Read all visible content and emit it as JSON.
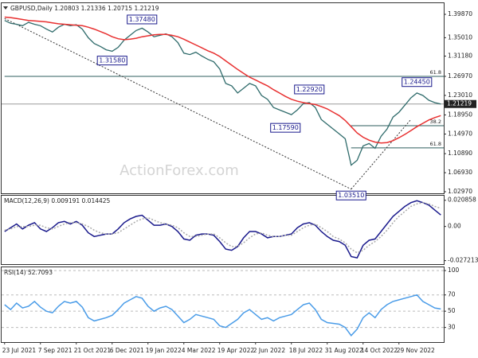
{
  "chart_data": [
    {
      "type": "line",
      "title": "GBPUSD,Daily  1.20803 1.21336 1.20715 1.21219",
      "watermark": "ActionForex.com",
      "categories": [
        "23 Jul 2021",
        null,
        null,
        null,
        null,
        null,
        "7 Sep 2021",
        null,
        null,
        null,
        null,
        null,
        "21 Oct 2021",
        null,
        null,
        null,
        null,
        null,
        "6 Dec 2021",
        null,
        null,
        null,
        null,
        null,
        "19 Jan 2022",
        null,
        null,
        null,
        null,
        null,
        "4 Mar 2022",
        null,
        null,
        null,
        null,
        null,
        "19 Apr 2022",
        null,
        null,
        null,
        null,
        null,
        "2 Jun 2022",
        null,
        null,
        null,
        null,
        null,
        "18 Jul 2022",
        null,
        null,
        null,
        null,
        null,
        "31 Aug 2022",
        null,
        null,
        null,
        null,
        null,
        "14 Oct 2022",
        null,
        null,
        null,
        null,
        null,
        "29 Nov 2022",
        null,
        null,
        null,
        null,
        null,
        null,
        null
      ],
      "series": [
        {
          "color": "#2f6b6b",
          "values": [
            1.386,
            1.38,
            1.378,
            1.375,
            1.382,
            1.378,
            1.375,
            1.368,
            1.362,
            1.372,
            1.378,
            1.375,
            1.377,
            1.368,
            1.35,
            1.338,
            1.332,
            1.325,
            1.322,
            1.33,
            1.345,
            1.355,
            1.365,
            1.37,
            1.362,
            1.352,
            1.355,
            1.358,
            1.352,
            1.34,
            1.318,
            1.315,
            1.32,
            1.312,
            1.305,
            1.3,
            1.285,
            1.255,
            1.25,
            1.235,
            1.245,
            1.255,
            1.25,
            1.23,
            1.222,
            1.205,
            1.2,
            1.195,
            1.19,
            1.2,
            1.213,
            1.215,
            1.205,
            1.18,
            1.17,
            1.16,
            1.15,
            1.14,
            1.085,
            1.095,
            1.125,
            1.13,
            1.12,
            1.145,
            1.16,
            1.185,
            1.195,
            1.21,
            1.225,
            1.235,
            1.23,
            1.22,
            1.215,
            1.21219
          ]
        },
        {
          "color": "#e83030",
          "values": [
            1.393,
            1.392,
            1.39,
            1.388,
            1.386,
            1.385,
            1.384,
            1.383,
            1.381,
            1.379,
            1.378,
            1.377,
            1.376,
            1.375,
            1.372,
            1.368,
            1.363,
            1.358,
            1.352,
            1.348,
            1.346,
            1.347,
            1.349,
            1.352,
            1.354,
            1.356,
            1.357,
            1.357,
            1.355,
            1.352,
            1.347,
            1.341,
            1.335,
            1.329,
            1.323,
            1.318,
            1.311,
            1.302,
            1.293,
            1.284,
            1.276,
            1.268,
            1.262,
            1.256,
            1.25,
            1.242,
            1.235,
            1.228,
            1.222,
            1.218,
            1.215,
            1.213,
            1.211,
            1.207,
            1.202,
            1.195,
            1.188,
            1.178,
            1.165,
            1.152,
            1.143,
            1.137,
            1.133,
            1.131,
            1.132,
            1.136,
            1.142,
            1.149,
            1.157,
            1.165,
            1.172,
            1.179,
            1.184,
            1.188
          ]
        }
      ],
      "last_label": "1.21219",
      "ylim": [
        1.0264,
        1.4219
      ],
      "yticks": [
        {
          "value": 1.3987,
          "label": "1.39870"
        },
        {
          "value": 1.3501,
          "label": "1.35010"
        },
        {
          "value": 1.3118,
          "label": "1.31180"
        },
        {
          "value": 1.2697,
          "label": "1.26970"
        },
        {
          "value": 1.2301,
          "label": "1.23010"
        },
        {
          "value": 1.1895,
          "label": "1.18950"
        },
        {
          "value": 1.1497,
          "label": "1.14970"
        },
        {
          "value": 1.1089,
          "label": "1.10890"
        },
        {
          "value": 1.0693,
          "label": "1.06930"
        },
        {
          "value": 1.0297,
          "label": "1.02970"
        }
      ],
      "levels": [
        {
          "value": 1.2697,
          "label": "61.8",
          "from": 0
        },
        {
          "value": 1.167,
          "label": "38.2",
          "from": 58
        },
        {
          "value": 1.1209,
          "label": "61.8",
          "from": 58
        }
      ],
      "trendlines": [
        {
          "x": [
            0,
            58
          ],
          "values": [
            1.39,
            1.0351
          ]
        },
        {
          "x": [
            58,
            68
          ],
          "values": [
            1.0351,
            1.18
          ]
        }
      ],
      "annotations": [
        {
          "x": 23,
          "value": 1.3748,
          "label": "1.37480"
        },
        {
          "x": 18,
          "value": 1.3158,
          "label": "1.31580"
        },
        {
          "x": 51,
          "value": 1.2292,
          "label": "1.22920"
        },
        {
          "x": 47,
          "value": 1.1759,
          "label": "1.17590"
        },
        {
          "x": 69,
          "value": 1.2445,
          "label": "1.24450"
        },
        {
          "x": 58,
          "value": 1.0351,
          "label": "1.03510"
        }
      ]
    },
    {
      "type": "line",
      "title": "MACD(12,26,9) 0.009191 0.014425",
      "series": [
        {
          "color": "#1a1a8c",
          "values": [
            -0.004,
            -0.001,
            0.002,
            -0.002,
            0.001,
            0.003,
            -0.002,
            -0.004,
            -0.001,
            0.003,
            0.004,
            0.002,
            0.004,
            0.001,
            -0.005,
            -0.008,
            -0.007,
            -0.006,
            -0.006,
            -0.002,
            0.003,
            0.006,
            0.008,
            0.009,
            0.005,
            0.001,
            0.001,
            0.002,
            0.0,
            -0.004,
            -0.01,
            -0.011,
            -0.007,
            -0.006,
            -0.006,
            -0.007,
            -0.012,
            -0.018,
            -0.019,
            -0.016,
            -0.009,
            -0.004,
            -0.004,
            -0.006,
            -0.009,
            -0.008,
            -0.008,
            -0.007,
            -0.006,
            -0.001,
            0.002,
            0.003,
            0.001,
            -0.004,
            -0.008,
            -0.011,
            -0.012,
            -0.015,
            -0.024,
            -0.025,
            -0.015,
            -0.011,
            -0.01,
            -0.004,
            0.002,
            0.008,
            0.012,
            0.016,
            0.019,
            0.0205,
            0.019,
            0.017,
            0.013,
            0.009191
          ]
        },
        {
          "color": "#aaaaaa",
          "dash": true,
          "values": [
            -0.003,
            -0.002,
            0.0,
            0.0,
            0.0,
            0.001,
            0.001,
            -0.001,
            -0.002,
            0.0,
            0.002,
            0.003,
            0.003,
            0.002,
            0.0,
            -0.003,
            -0.005,
            -0.006,
            -0.006,
            -0.005,
            -0.002,
            0.001,
            0.004,
            0.006,
            0.007,
            0.005,
            0.003,
            0.002,
            0.001,
            -0.001,
            -0.005,
            -0.008,
            -0.008,
            -0.007,
            -0.006,
            -0.006,
            -0.009,
            -0.013,
            -0.016,
            -0.016,
            -0.013,
            -0.009,
            -0.006,
            -0.005,
            -0.007,
            -0.008,
            -0.008,
            -0.007,
            -0.007,
            -0.004,
            -0.001,
            0.001,
            0.002,
            -0.001,
            -0.004,
            -0.008,
            -0.01,
            -0.013,
            -0.018,
            -0.021,
            -0.019,
            -0.015,
            -0.012,
            -0.008,
            -0.003,
            0.003,
            0.008,
            0.012,
            0.016,
            0.018,
            0.019,
            0.018,
            0.016,
            0.014425
          ]
        }
      ],
      "ylim": [
        -0.03,
        0.0245
      ],
      "yticks": [
        0.020858,
        {
          "value": 0,
          "label": "0.00"
        },
        -0.027213
      ]
    },
    {
      "type": "line",
      "title": "RSI(14) 52.7093",
      "series": [
        {
          "color": "#4a9ce8",
          "values": [
            58,
            52,
            60,
            54,
            56,
            62,
            55,
            50,
            48,
            56,
            62,
            60,
            62,
            55,
            42,
            38,
            40,
            42,
            45,
            52,
            60,
            64,
            68,
            66,
            56,
            50,
            54,
            56,
            52,
            44,
            36,
            40,
            46,
            44,
            42,
            40,
            32,
            30,
            35,
            40,
            48,
            52,
            46,
            40,
            42,
            38,
            42,
            44,
            46,
            52,
            58,
            60,
            52,
            40,
            36,
            35,
            34,
            30,
            20,
            28,
            42,
            48,
            42,
            52,
            58,
            62,
            64,
            66,
            68,
            70,
            62,
            58,
            54,
            52.7093
          ]
        }
      ],
      "ylim": [
        12,
        104
      ],
      "yticks": [
        100,
        70,
        50,
        30
      ],
      "grid": true
    }
  ]
}
